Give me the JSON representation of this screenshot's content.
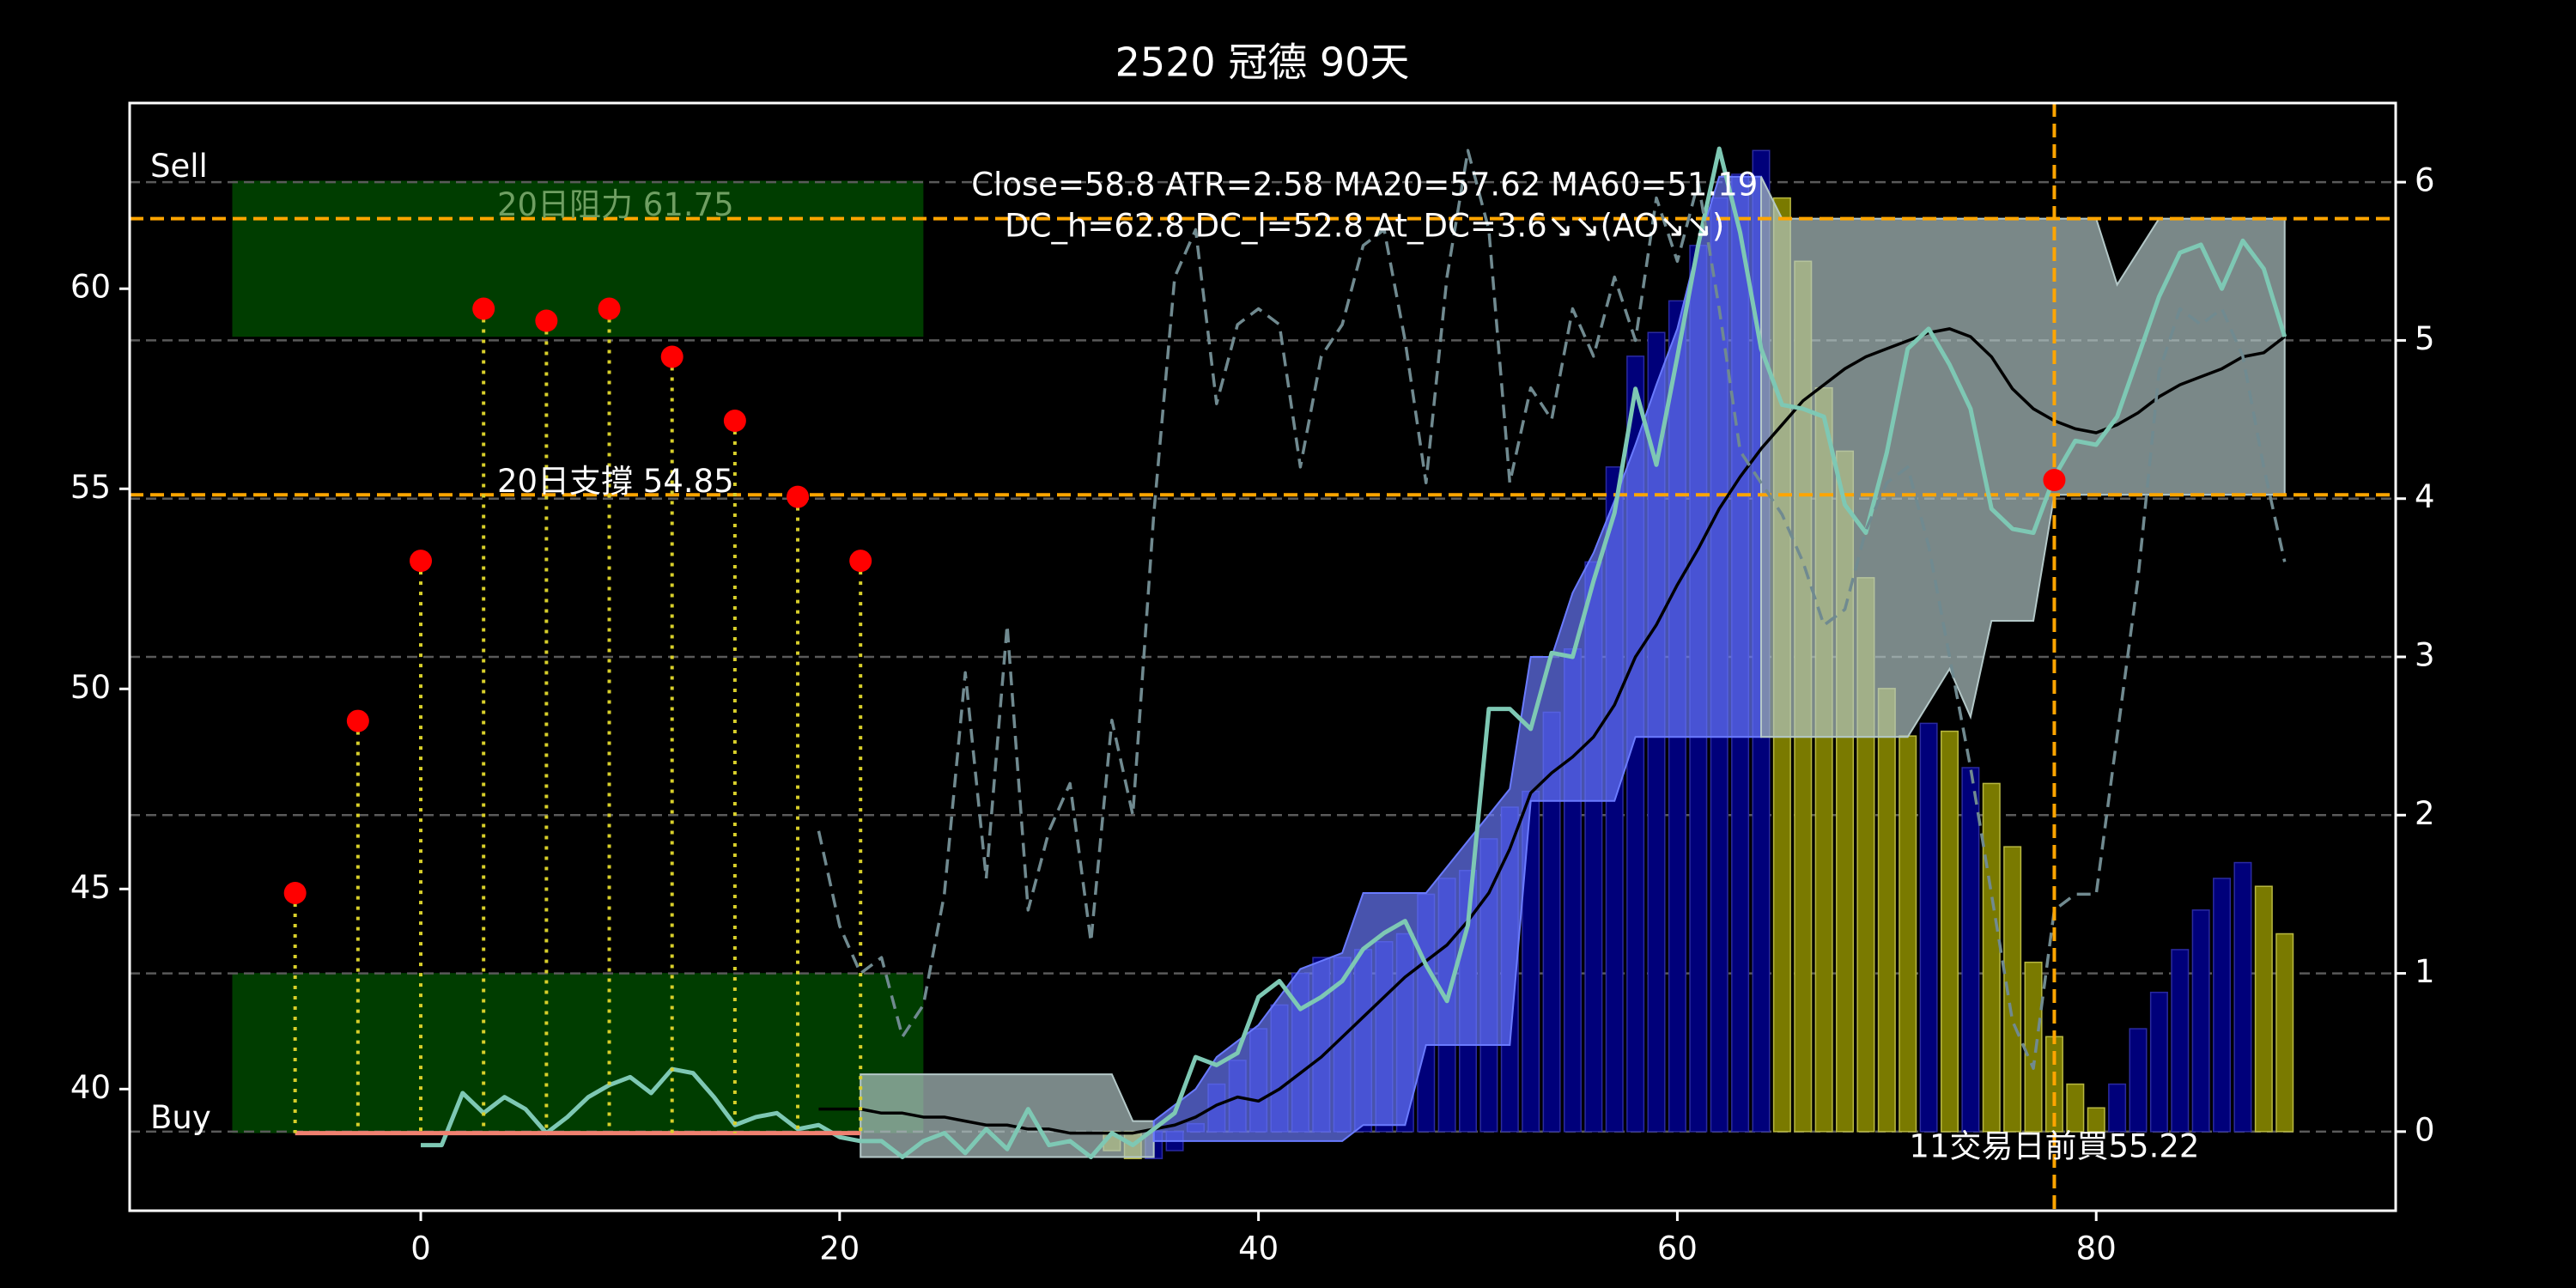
{
  "chart_data": {
    "type": "line",
    "title": "2520 冠德 90天",
    "xlim": [
      -13.9,
      94.3
    ],
    "xticks": [
      0,
      20,
      40,
      60,
      80
    ],
    "ylim": [
      36.96,
      64.64
    ],
    "yticks": [
      40,
      45,
      50,
      55,
      60
    ],
    "y2lim": [
      -0.5,
      6.5
    ],
    "y2ticks": [
      0,
      1,
      2,
      3,
      4,
      5,
      6
    ],
    "grid": true,
    "zones": [
      {
        "label": "Sell",
        "x": [
          -9,
          24
        ],
        "y": [
          58.8,
          62.7
        ],
        "color": "#003d00"
      },
      {
        "label": "Buy",
        "x": [
          -9,
          24
        ],
        "y": [
          38.9,
          42.9
        ],
        "color": "#003d00"
      }
    ],
    "hlines": [
      {
        "value": 61.75,
        "label": "20日阻力 61.75",
        "color": "#ffa500",
        "label_color": "#6f9f62"
      },
      {
        "value": 54.85,
        "label": "20日支撐 54.85",
        "color": "#ffa500",
        "label_color": "#ffffff"
      }
    ],
    "vline": {
      "x": 78,
      "color": "#ffa500"
    },
    "annotations": [
      "Close=58.8 ATR=2.58 MA20=57.62 MA60=51.19",
      "DC_h=62.8 DC_l=52.8 At_DC=3.6↘↘(AO↘↘)"
    ],
    "signals": {
      "x": [
        -6,
        -3,
        0,
        3,
        6,
        9,
        12,
        15,
        18,
        21
      ],
      "values": [
        44.9,
        49.2,
        53.2,
        59.5,
        59.2,
        59.5,
        58.3,
        56.7,
        54.8,
        53.2
      ],
      "base": 38.9,
      "color": "#ff0000",
      "stem_color": "#d8cf2a",
      "base_color": "#f08070"
    },
    "marker": {
      "x": 78,
      "value": 55.22,
      "label": "11交易日前買55.22",
      "color": "#ff0000"
    },
    "bars": {
      "axis": "y2",
      "x": [
        33,
        34,
        35,
        36,
        37,
        38,
        39,
        40,
        41,
        42,
        43,
        44,
        45,
        46,
        47,
        48,
        49,
        50,
        51,
        52,
        53,
        54,
        55,
        56,
        57,
        58,
        59,
        60,
        61,
        62,
        63,
        64,
        65,
        66,
        67,
        68,
        69,
        70,
        71,
        72,
        73,
        74,
        75,
        76,
        77,
        78,
        79,
        80,
        81,
        82,
        83,
        84,
        85,
        86,
        87,
        88,
        89
      ],
      "values": [
        -0.12,
        -0.17,
        -0.17,
        -0.12,
        0.05,
        0.3,
        0.45,
        0.65,
        0.8,
        1.0,
        1.1,
        1.1,
        1.15,
        1.2,
        1.25,
        1.5,
        1.6,
        1.65,
        1.85,
        2.05,
        2.15,
        2.65,
        3.05,
        3.6,
        4.2,
        4.9,
        5.05,
        5.25,
        5.6,
        5.9,
        6.05,
        6.2,
        5.9,
        5.5,
        4.7,
        4.3,
        3.5,
        2.8,
        2.5,
        2.58,
        2.53,
        2.3,
        2.2,
        1.8,
        1.07,
        0.6,
        0.3,
        0.15,
        0.3,
        0.65,
        0.88,
        1.15,
        1.4,
        1.6,
        1.7,
        1.55,
        1.25
      ],
      "colors": [
        "#7a7a00",
        "#7a7a00",
        "#00007a",
        "#00007a",
        "#00007a",
        "#00007a",
        "#00007a",
        "#00007a",
        "#00007a",
        "#00007a",
        "#00007a",
        "#00007a",
        "#00007a",
        "#00007a",
        "#00007a",
        "#00007a",
        "#00007a",
        "#00007a",
        "#00007a",
        "#00007a",
        "#00007a",
        "#00007a",
        "#00007a",
        "#00007a",
        "#00007a",
        "#00007a",
        "#00007a",
        "#00007a",
        "#00007a",
        "#00007a",
        "#00007a",
        "#00007a",
        "#7a7a00",
        "#7a7a00",
        "#7a7a00",
        "#7a7a00",
        "#7a7a00",
        "#7a7a00",
        "#7a7a00",
        "#00007a",
        "#7a7a00",
        "#00007a",
        "#7a7a00",
        "#7a7a00",
        "#7a7a00",
        "#7a7a00",
        "#7a7a00",
        "#7a7a00",
        "#00007a",
        "#00007a",
        "#00007a",
        "#00007a",
        "#00007a",
        "#00007a",
        "#00007a",
        "#7a7a00",
        "#7a7a00"
      ]
    },
    "bands": [
      {
        "color": "#b4c8c8",
        "x": [
          21,
          33,
          34,
          35
        ],
        "upper": [
          40.37,
          40.37,
          39.2,
          39.2
        ],
        "lower": [
          38.3,
          38.3,
          38.3,
          38.3
        ]
      },
      {
        "color": "#6a7bff",
        "x": [
          35,
          37,
          38,
          40,
          42,
          44,
          45,
          47,
          48,
          52,
          53,
          54,
          55,
          56,
          57,
          58,
          59,
          60,
          61,
          62,
          64
        ],
        "upper": [
          39.2,
          40.0,
          40.8,
          41.6,
          43.0,
          43.4,
          44.9,
          44.9,
          44.9,
          47.5,
          50.8,
          50.8,
          52.4,
          53.4,
          54.7,
          56.1,
          57.6,
          59.0,
          61.1,
          62.8,
          62.8
        ],
        "lower": [
          38.7,
          38.7,
          38.7,
          38.7,
          38.7,
          38.7,
          39.1,
          39.1,
          41.1,
          41.1,
          47.2,
          47.2,
          47.2,
          47.2,
          47.2,
          48.8,
          48.8,
          48.8,
          48.8,
          48.8,
          48.8
        ]
      },
      {
        "color": "#b4c8c8",
        "x": [
          64,
          65,
          71,
          73,
          74,
          75,
          77,
          78,
          80,
          81,
          83,
          89
        ],
        "upper": [
          62.8,
          61.75,
          61.75,
          61.75,
          61.75,
          61.75,
          61.75,
          61.75,
          61.75,
          60.1,
          61.75,
          61.75
        ],
        "lower": [
          48.8,
          48.8,
          48.8,
          50.5,
          49.3,
          51.7,
          51.7,
          54.85,
          54.85,
          54.85,
          54.85,
          54.85
        ]
      }
    ],
    "series": [
      {
        "color": "#000000",
        "width": 3.5,
        "x": [
          19,
          20,
          21,
          22,
          23,
          24,
          25,
          26,
          27,
          28,
          29,
          30,
          31,
          32,
          33,
          34,
          35,
          36,
          37,
          38,
          39,
          40,
          41,
          42,
          43,
          44,
          45,
          46,
          47,
          48,
          49,
          50,
          51,
          52,
          53,
          54,
          55,
          56,
          57,
          58,
          59,
          60,
          61,
          62,
          63,
          64,
          65,
          66,
          67,
          68,
          69,
          70,
          71,
          72,
          73,
          74,
          75,
          76,
          77,
          78,
          79,
          80,
          81,
          82,
          83,
          84,
          85,
          86,
          87,
          88,
          89
        ],
        "values": [
          39.5,
          39.5,
          39.5,
          39.4,
          39.4,
          39.3,
          39.3,
          39.2,
          39.1,
          39.1,
          39.0,
          39.0,
          38.9,
          38.9,
          38.9,
          38.9,
          39.0,
          39.1,
          39.3,
          39.6,
          39.8,
          39.7,
          40.0,
          40.4,
          40.8,
          41.3,
          41.8,
          42.3,
          42.8,
          43.2,
          43.6,
          44.2,
          44.9,
          46.0,
          47.4,
          47.9,
          48.3,
          48.8,
          49.6,
          50.8,
          51.6,
          52.6,
          53.5,
          54.5,
          55.3,
          56.0,
          56.6,
          57.2,
          57.6,
          58.0,
          58.3,
          58.5,
          58.7,
          58.9,
          59.0,
          58.8,
          58.3,
          57.5,
          57.0,
          56.7,
          56.5,
          56.4,
          56.6,
          56.9,
          57.3,
          57.6,
          57.8,
          58.0,
          58.3,
          58.4,
          58.8
        ]
      },
      {
        "color": "#7ec8b4",
        "width": 5,
        "x": [
          0,
          1,
          2,
          3,
          4,
          5,
          6,
          7,
          8,
          9,
          10,
          11,
          12,
          13,
          14,
          15,
          16,
          17,
          18,
          19,
          20,
          21,
          22,
          23,
          24,
          25,
          26,
          27,
          28,
          29,
          30,
          31,
          32,
          33,
          34,
          35,
          36,
          37,
          38,
          39,
          40,
          41,
          42,
          43,
          44,
          45,
          46,
          47,
          48,
          49,
          50,
          51,
          52,
          53,
          54,
          55,
          56,
          57,
          58,
          59,
          60,
          61,
          62,
          63,
          64,
          65,
          66,
          67,
          68,
          69,
          70,
          71,
          72,
          73,
          74,
          75,
          76,
          77,
          78,
          79,
          80,
          81,
          82,
          83,
          84,
          85,
          86,
          87,
          88,
          89
        ],
        "values": [
          38.6,
          38.6,
          39.9,
          39.4,
          39.8,
          39.5,
          38.9,
          39.3,
          39.8,
          40.1,
          40.3,
          39.9,
          40.5,
          40.4,
          39.8,
          39.1,
          39.3,
          39.4,
          39.0,
          39.1,
          38.8,
          38.7,
          38.7,
          38.3,
          38.7,
          38.9,
          38.4,
          39.0,
          38.5,
          39.5,
          38.6,
          38.7,
          38.3,
          38.9,
          38.6,
          39.0,
          39.4,
          40.8,
          40.6,
          40.9,
          42.3,
          42.7,
          42.0,
          42.3,
          42.7,
          43.5,
          43.9,
          44.2,
          43.1,
          42.2,
          44.1,
          49.5,
          49.5,
          49.0,
          50.9,
          50.8,
          52.7,
          54.4,
          57.5,
          55.6,
          58.3,
          61.1,
          63.5,
          61.4,
          58.5,
          57.1,
          57.0,
          56.8,
          54.6,
          53.9,
          55.9,
          58.5,
          59.0,
          58.1,
          57.0,
          54.5,
          54.0,
          53.9,
          55.3,
          56.2,
          56.1,
          56.8,
          58.3,
          59.8,
          60.9,
          61.1,
          60.0,
          61.2,
          60.5,
          58.8
        ]
      },
      {
        "color": "#708a90",
        "width": 3.5,
        "dash": true,
        "axis": "y2",
        "x": [
          19,
          20,
          21,
          22,
          23,
          24,
          25,
          26,
          27,
          28,
          29,
          30,
          31,
          32,
          33,
          34,
          35,
          36,
          37,
          38,
          39,
          40,
          41,
          42,
          43,
          44,
          45,
          46,
          47,
          48,
          49,
          50,
          51,
          52,
          53,
          54,
          55,
          56,
          57,
          58,
          59,
          60,
          61,
          62,
          63,
          64,
          65,
          66,
          67,
          68,
          69,
          70,
          71,
          72,
          73,
          74,
          75,
          76,
          77,
          78,
          79,
          80,
          81,
          82,
          83,
          84,
          85,
          86,
          87,
          88,
          89
        ],
        "values": [
          1.9,
          1.3,
          1.0,
          1.1,
          0.6,
          0.8,
          1.5,
          2.9,
          1.6,
          3.2,
          1.4,
          1.9,
          2.2,
          1.2,
          2.6,
          2.0,
          3.9,
          5.4,
          5.7,
          4.6,
          5.1,
          5.2,
          5.1,
          4.2,
          4.9,
          5.1,
          5.6,
          5.7,
          5.0,
          4.1,
          5.4,
          6.2,
          5.7,
          4.1,
          4.7,
          4.5,
          5.2,
          4.9,
          5.4,
          5.0,
          5.9,
          5.5,
          6.0,
          5.2,
          4.3,
          4.1,
          3.9,
          3.6,
          3.2,
          3.3,
          3.8,
          4.1,
          4.2,
          3.7,
          3.0,
          2.3,
          1.5,
          0.7,
          0.4,
          1.4,
          1.5,
          1.5,
          2.5,
          3.5,
          4.8,
          5.2,
          5.1,
          5.2,
          4.9,
          4.2,
          3.6
        ]
      }
    ]
  }
}
